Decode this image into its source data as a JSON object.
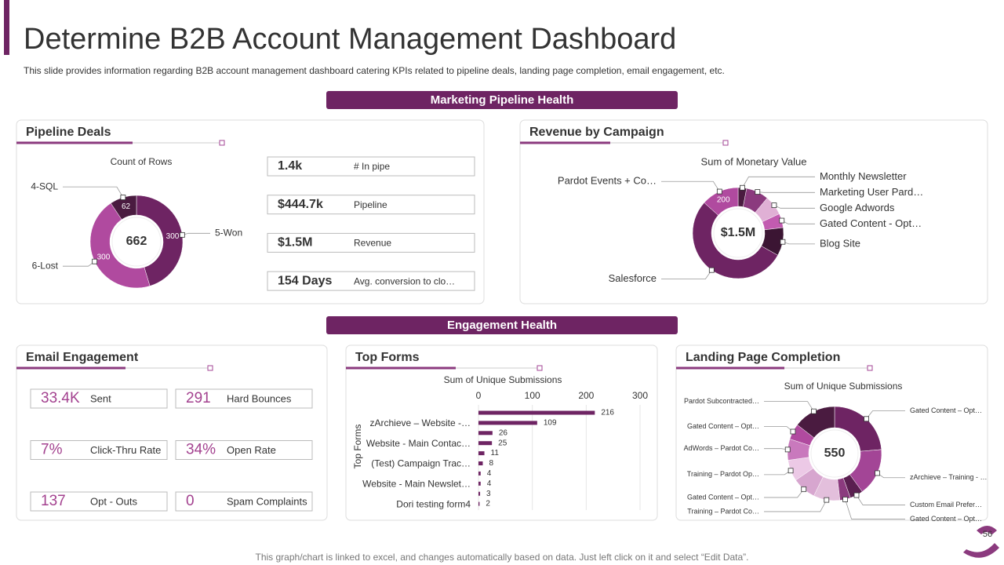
{
  "title": "Determine B2B Account Management Dashboard",
  "subtitle": "This slide provides information regarding B2B account management dashboard catering KPIs related to pipeline deals, landing page completion, email engagement, etc.",
  "section_headers": [
    "Marketing Pipeline Health",
    "Engagement Health"
  ],
  "pipeline_kpis": [
    {
      "value": "1.4k",
      "label": "# In pipe"
    },
    {
      "value": "$444.7k",
      "label": "Pipeline"
    },
    {
      "value": "$1.5M",
      "label": "Revenue"
    },
    {
      "value": "154 Days",
      "label": "Avg. conversion to clo…"
    }
  ],
  "email_engagement": {
    "title": "Email Engagement",
    "kpis": [
      {
        "value": "33.4K",
        "label": "Sent"
      },
      {
        "value": "291",
        "label": "Hard Bounces"
      },
      {
        "value": "7%",
        "label": "Click-Thru Rate"
      },
      {
        "value": "34%",
        "label": "Open Rate"
      },
      {
        "value": "137",
        "label": "Opt - Outs"
      },
      {
        "value": "0",
        "label": "Spam Complaints"
      }
    ]
  },
  "footer": "This graph/chart is linked to excel, and changes automatically based on data. Just left click on it and select “Edit Data”.",
  "page_number": "56",
  "chart_data": [
    {
      "type": "donut",
      "title": "Pipeline Deals",
      "subtitle": "Count of Rows",
      "center_label": "662",
      "categories": [
        "5-Won",
        "6-Lost",
        "4-SQL"
      ],
      "values": [
        300,
        300,
        62
      ],
      "colors": [
        "#6e2463",
        "#b04a9f",
        "#4a1b40"
      ],
      "data_labels": true
    },
    {
      "type": "donut",
      "title": "Revenue by Campaign",
      "subtitle": "Sum of Monetary Value",
      "center_label": "$1.5M",
      "categories": [
        "Monthly Newsletter",
        "Marketing User Pard…",
        "Google Adwords",
        "Gated Content - Opt…",
        "Blog Site",
        "Salesforce",
        "Pardot Events + Co…"
      ],
      "values": [
        45,
        120,
        105,
        75,
        150,
        800,
        200
      ],
      "value_labels": [
        null,
        null,
        null,
        null,
        null,
        null,
        "200"
      ],
      "colors": [
        "#4a1b40",
        "#8b3a7e",
        "#e0b0d5",
        "#c25bb0",
        "#3b1533",
        "#6e2463",
        "#b04a9f"
      ]
    },
    {
      "type": "hbar",
      "title": "Top Forms",
      "subtitle": "Sum of Unique Submissions",
      "y_label": "Top Forms",
      "categories": [
        null,
        "zArchieve – Website -…",
        null,
        "Website - Main Contac…",
        null,
        "(Test) Campaign Trac…",
        null,
        "Website - Main Newslet…",
        null,
        "Dori testing form4"
      ],
      "values": [
        216,
        109,
        26,
        25,
        11,
        8,
        4,
        4,
        3,
        2
      ],
      "color": "#6e2463",
      "xlim": [
        0,
        300
      ],
      "xticks": [
        0,
        100,
        200,
        300
      ],
      "grid": true
    },
    {
      "type": "donut",
      "title": "Landing Page Completion",
      "subtitle": "Sum of Unique Submissions",
      "center_label": "550",
      "categories": [
        "Gated Content – Opt…",
        "zArchieve – Training - …",
        "Custom Email Prefer…",
        "Gated Content – Opt…",
        "Training – Pardot Co…",
        "Gated Content – Opt…",
        "Training – Pardot Op…",
        "AdWords – Pardot Co…",
        "Gated Content – Opt…",
        "Pardot Subcontracted…"
      ],
      "values": [
        130,
        90,
        25,
        20,
        50,
        45,
        40,
        40,
        30,
        80
      ],
      "colors": [
        "#6e2463",
        "#a34596",
        "#5a1f50",
        "#8b3a7e",
        "#e3bfdc",
        "#d7a6cf",
        "#ecc9e6",
        "#c979bd",
        "#b04a9f",
        "#4a1b40"
      ]
    }
  ]
}
